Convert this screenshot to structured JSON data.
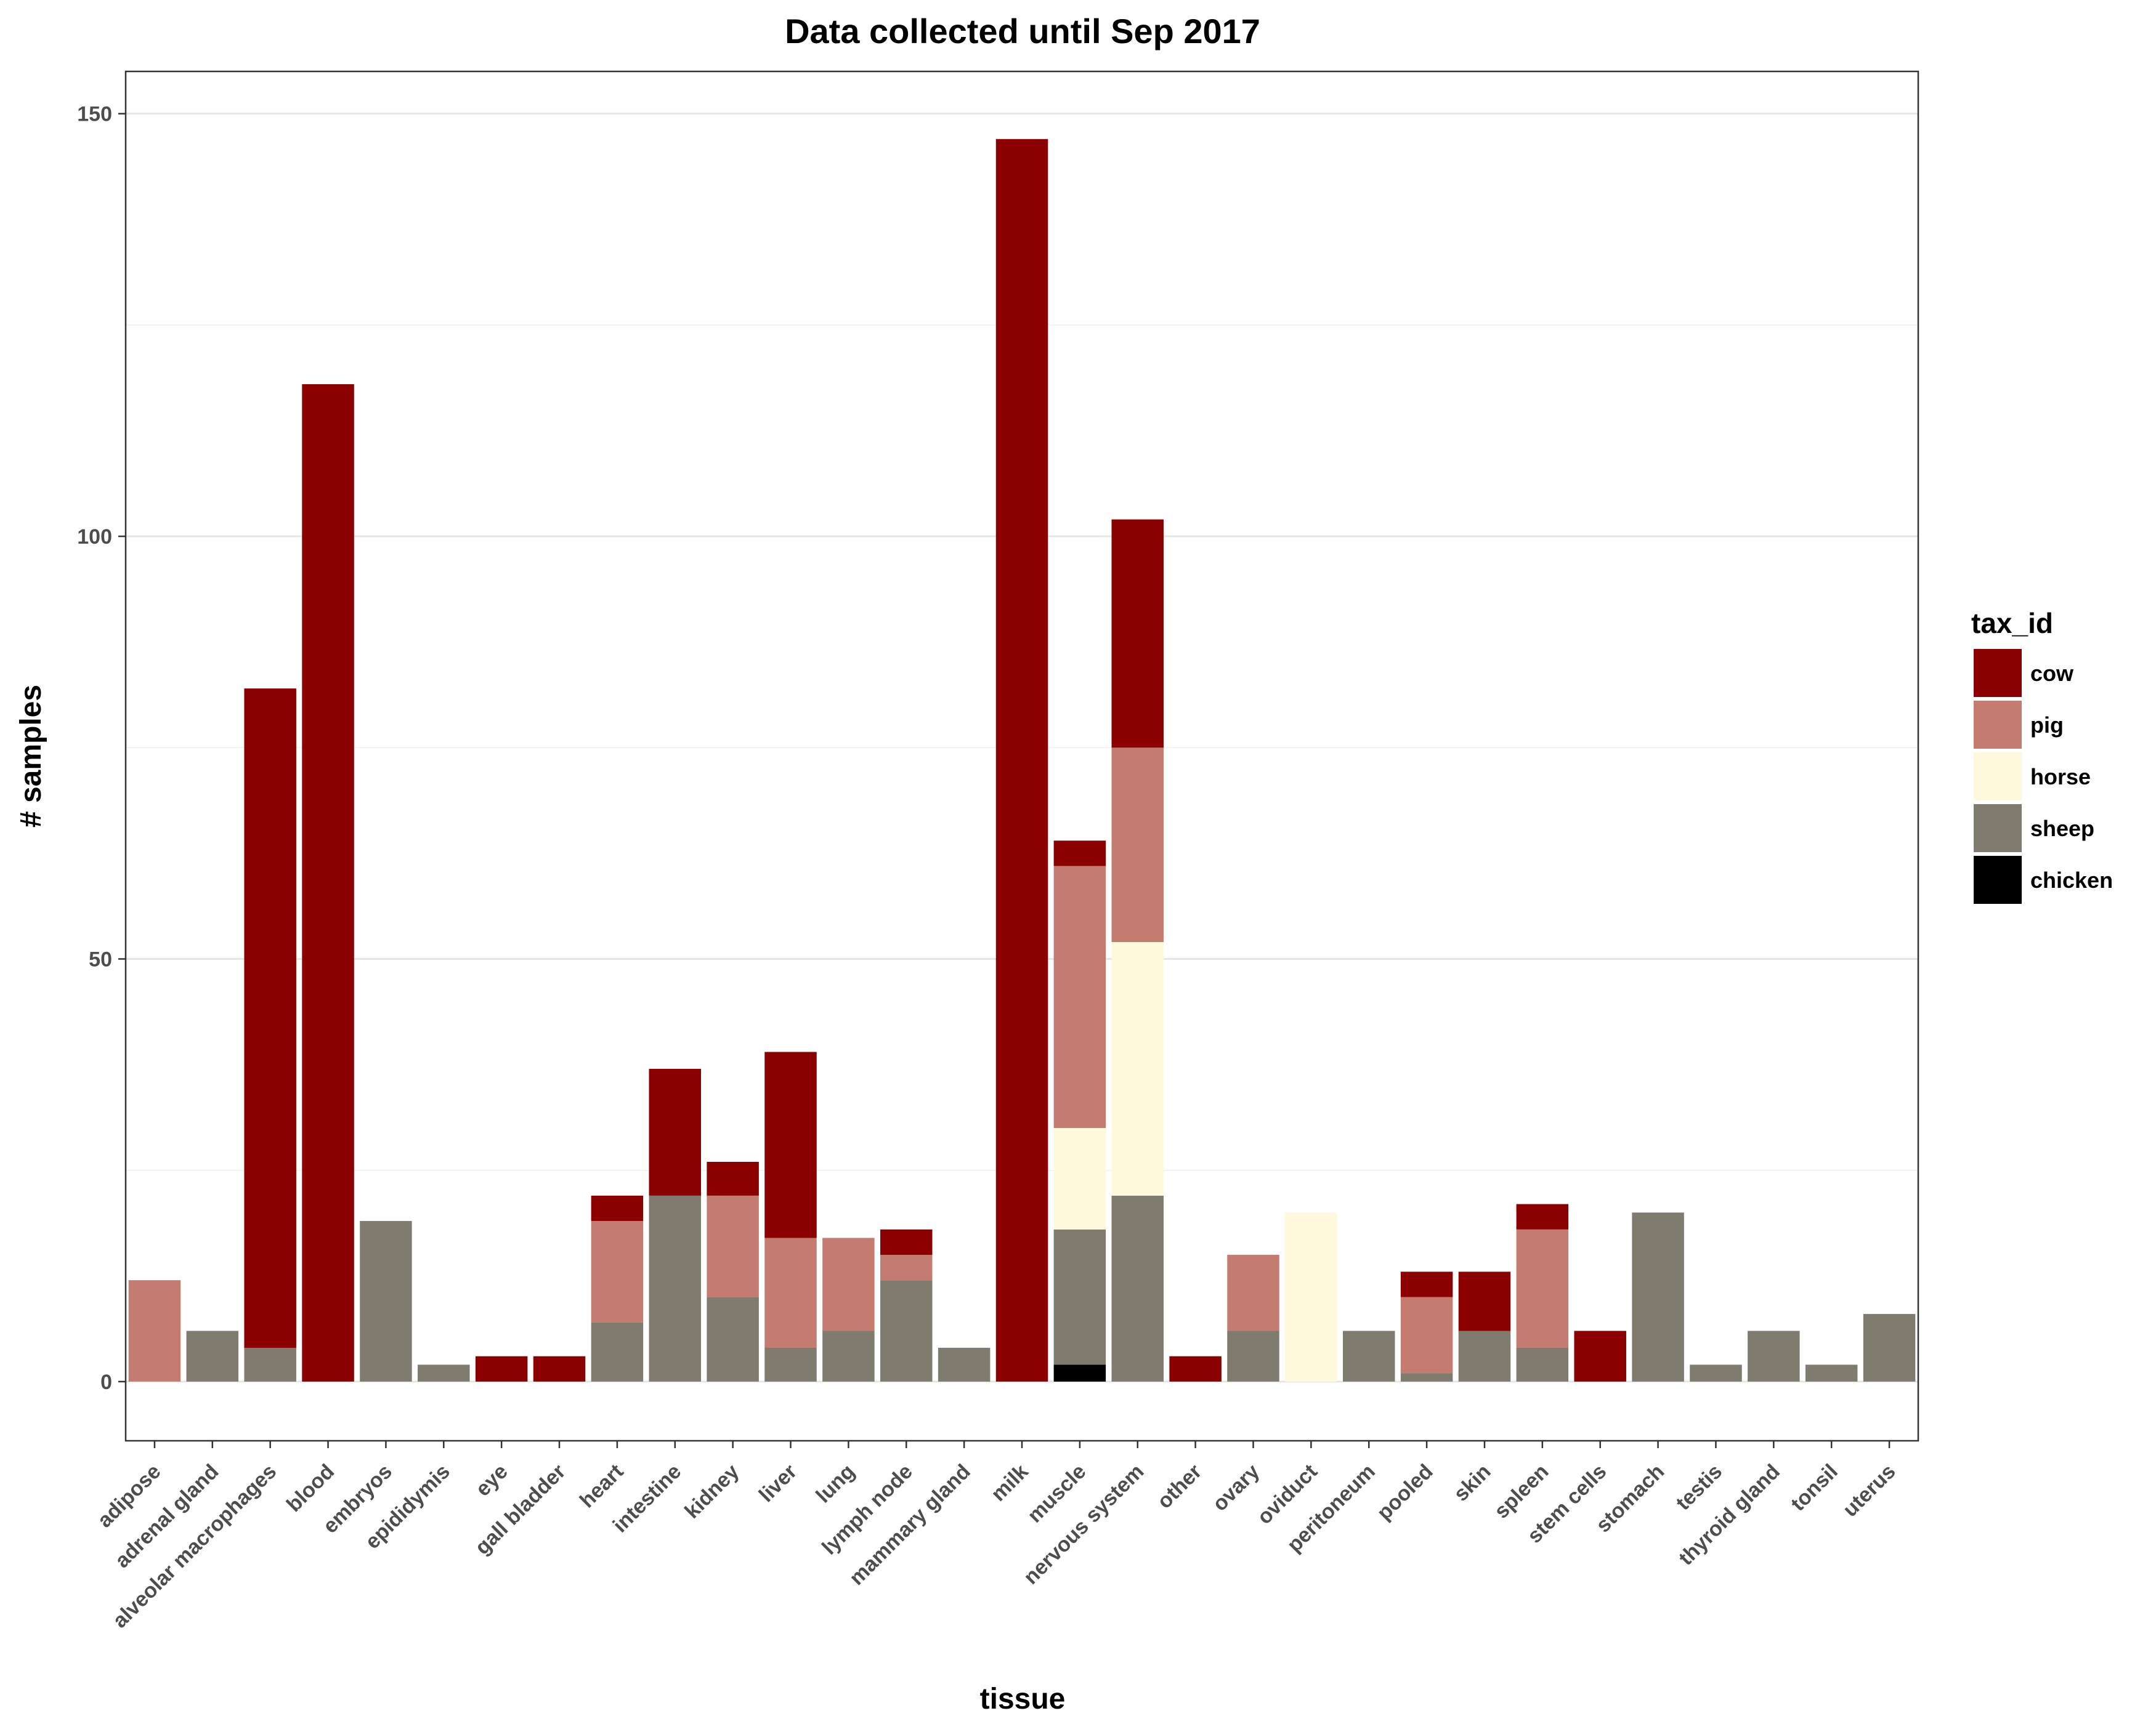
{
  "chart_data": {
    "type": "bar",
    "stacked": true,
    "title": "Data collected until Sep 2017",
    "xlabel": "tissue",
    "ylabel": "# samples",
    "ylim": [
      -7,
      155
    ],
    "yticks": [
      0,
      50,
      100,
      150
    ],
    "grid": true,
    "legend": {
      "title": "tax_id",
      "position": "right"
    },
    "categories": [
      "adipose",
      "adrenal gland",
      "alveolar macrophages",
      "blood",
      "embryos",
      "epididymis",
      "eye",
      "gall bladder",
      "heart",
      "intestine",
      "kidney",
      "liver",
      "lung",
      "lymph node",
      "mammary gland",
      "milk",
      "muscle",
      "nervous system",
      "other",
      "ovary",
      "oviduct",
      "peritoneum",
      "pooled",
      "skin",
      "spleen",
      "stem cells",
      "stomach",
      "testis",
      "thyroid gland",
      "tonsil",
      "uterus"
    ],
    "series": [
      {
        "name": "chicken",
        "color": "#000000",
        "values": [
          0,
          0,
          0,
          0,
          0,
          0,
          0,
          0,
          0,
          0,
          0,
          0,
          0,
          0,
          0,
          0,
          2,
          0,
          0,
          0,
          0,
          0,
          0,
          0,
          0,
          0,
          0,
          0,
          0,
          0,
          0
        ]
      },
      {
        "name": "sheep",
        "color": "#7f7b6e",
        "values": [
          0,
          6,
          4,
          0,
          19,
          2,
          0,
          0,
          7,
          22,
          10,
          4,
          6,
          12,
          4,
          0,
          16,
          22,
          0,
          6,
          0,
          6,
          1,
          6,
          4,
          0,
          20,
          2,
          6,
          2,
          8
        ]
      },
      {
        "name": "horse",
        "color": "#fff8dc",
        "values": [
          0,
          0,
          0,
          0,
          0,
          0,
          0,
          0,
          0,
          0,
          0,
          0,
          0,
          0,
          0,
          0,
          12,
          30,
          0,
          0,
          20,
          0,
          0,
          0,
          0,
          0,
          0,
          0,
          0,
          0,
          0
        ]
      },
      {
        "name": "pig",
        "color": "#c57c70",
        "values": [
          12,
          0,
          0,
          0,
          0,
          0,
          0,
          0,
          12,
          0,
          12,
          13,
          11,
          3,
          0,
          0,
          31,
          23,
          0,
          9,
          0,
          0,
          9,
          0,
          14,
          0,
          0,
          0,
          0,
          0,
          0
        ]
      },
      {
        "name": "cow",
        "color": "#8b0000",
        "values": [
          0,
          0,
          78,
          118,
          0,
          0,
          3,
          3,
          3,
          15,
          4,
          22,
          0,
          3,
          0,
          147,
          3,
          27,
          3,
          0,
          0,
          0,
          3,
          7,
          3,
          6,
          0,
          0,
          0,
          0,
          0
        ]
      }
    ],
    "legend_order": [
      "cow",
      "pig",
      "horse",
      "sheep",
      "chicken"
    ]
  }
}
